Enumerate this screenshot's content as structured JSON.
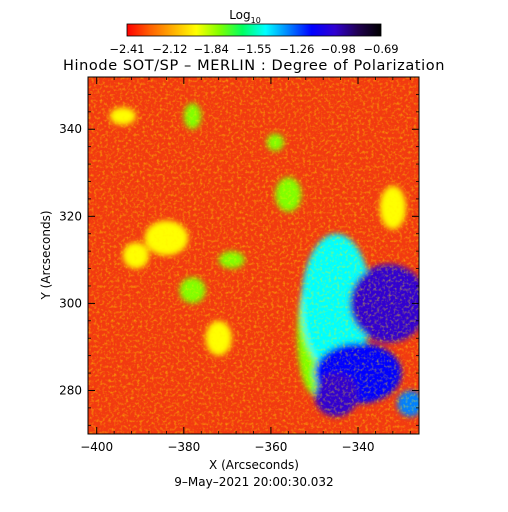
{
  "chart_data": {
    "type": "heatmap",
    "title": "Hinode SOT/SP – MERLIN : Degree of Polarization",
    "xlabel": "X (Arcseconds)",
    "ylabel": "Y (Arcseconds)",
    "xlim": [
      -402,
      -326
    ],
    "ylim": [
      270,
      352
    ],
    "xticks": [
      -400,
      -380,
      -360,
      -340
    ],
    "yticks": [
      280,
      300,
      320,
      340
    ],
    "xtick_labels": [
      "−400",
      "−380",
      "−360",
      "−340"
    ],
    "ytick_labels": [
      "280",
      "300",
      "320",
      "340"
    ],
    "timestamp": "9–May–2021 20:00:30.032",
    "colorbar": {
      "label_main": "Log",
      "label_sub": "10",
      "range": [
        -2.41,
        -0.69
      ],
      "ticks": [
        -2.41,
        -2.12,
        -1.84,
        -1.55,
        -1.26,
        -0.98,
        -0.69
      ],
      "tick_labels": [
        "−2.41",
        "−2.12",
        "−1.84",
        "−1.55",
        "−1.26",
        "−0.98",
        "−0.69"
      ],
      "colormap": [
        "#ff0000",
        "#ff6000",
        "#ffb000",
        "#ffff00",
        "#80ff00",
        "#00ff60",
        "#00ffff",
        "#0080ff",
        "#0000ff",
        "#3000d0",
        "#200050",
        "#000000"
      ]
    },
    "features": [
      {
        "x": -333,
        "y": 300,
        "value": -1.0,
        "rx": 9,
        "ry": 9
      },
      {
        "x": -331,
        "y": 298,
        "value": -0.95,
        "rx": 5,
        "ry": 5
      },
      {
        "x": -345,
        "y": 279,
        "value": -1.0,
        "rx": 5,
        "ry": 5
      },
      {
        "x": -340,
        "y": 284,
        "value": -1.2,
        "rx": 10,
        "ry": 7
      },
      {
        "x": -345,
        "y": 300,
        "value": -1.55,
        "rx": 8,
        "ry": 16
      },
      {
        "x": -350,
        "y": 293,
        "value": -1.75,
        "rx": 4,
        "ry": 14
      },
      {
        "x": -384,
        "y": 315,
        "value": -1.9,
        "rx": 5,
        "ry": 4
      },
      {
        "x": -391,
        "y": 311,
        "value": -1.9,
        "rx": 3,
        "ry": 3
      },
      {
        "x": -378,
        "y": 303,
        "value": -1.85,
        "rx": 3,
        "ry": 3
      },
      {
        "x": -372,
        "y": 292,
        "value": -1.9,
        "rx": 3,
        "ry": 4
      },
      {
        "x": -369,
        "y": 310,
        "value": -1.85,
        "rx": 3,
        "ry": 2
      },
      {
        "x": -356,
        "y": 325,
        "value": -1.85,
        "rx": 3,
        "ry": 4
      },
      {
        "x": -359,
        "y": 337,
        "value": -1.8,
        "rx": 2,
        "ry": 2
      },
      {
        "x": -378,
        "y": 343,
        "value": -1.85,
        "rx": 2,
        "ry": 3
      },
      {
        "x": -394,
        "y": 343,
        "value": -2.0,
        "rx": 3,
        "ry": 2
      },
      {
        "x": -332,
        "y": 322,
        "value": -2.0,
        "rx": 3,
        "ry": 5
      },
      {
        "x": -328,
        "y": 277,
        "value": -1.3,
        "rx": 3,
        "ry": 3
      }
    ]
  }
}
